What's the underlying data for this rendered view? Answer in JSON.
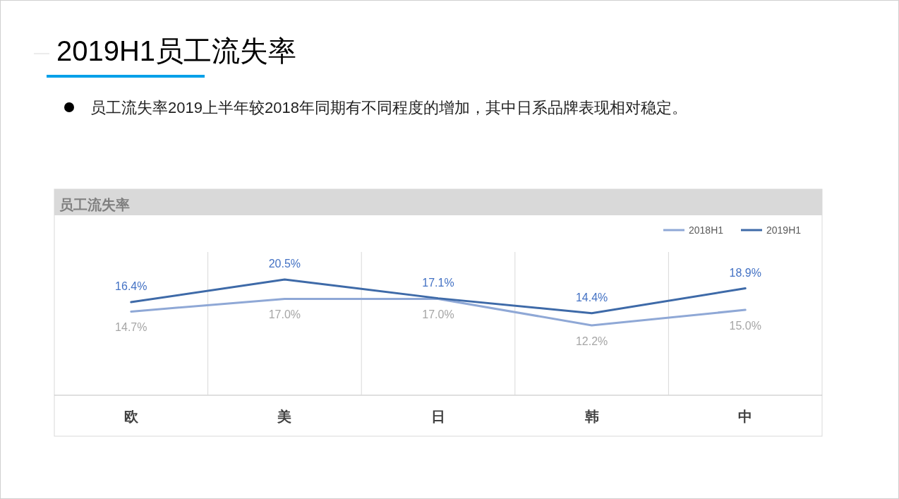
{
  "chart_data": {
    "type": "line",
    "title": "2019H1员工流失率",
    "subtitle": "员工流失率2019上半年较2018年同期有不同程度的增加，其中日系品牌表现相对稳定。",
    "annotations": [
      "员工流失率"
    ],
    "categories": [
      "欧",
      "美",
      "日",
      "韩",
      "中"
    ],
    "series": [
      {
        "name": "2018H1",
        "color": "#8fa8d6",
        "values": [
          14.7,
          17.0,
          17.0,
          12.2,
          15.0
        ],
        "value_labels": [
          "14.7%",
          "17.0%",
          "17.0%",
          "12.2%",
          "15.0%"
        ]
      },
      {
        "name": "2019H1",
        "color": "#3e6aa8",
        "values": [
          16.4,
          20.5,
          17.1,
          14.4,
          18.9
        ],
        "value_labels": [
          "16.4%",
          "20.5%",
          "17.1%",
          "14.4%",
          "18.9%"
        ]
      }
    ],
    "grid": "x",
    "legend": "top right",
    "marker": "none",
    "line_style": "solid"
  }
}
